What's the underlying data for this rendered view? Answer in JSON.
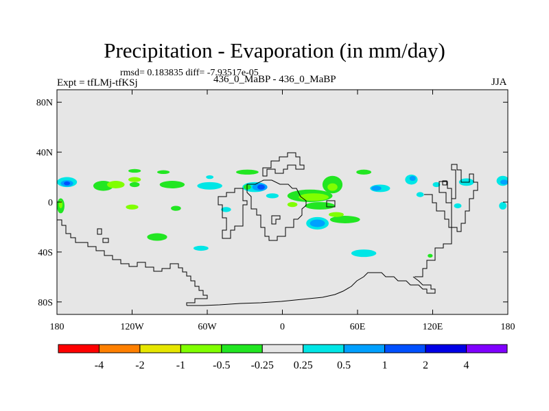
{
  "title": "Precipitation - Evaporation (in mm/day)",
  "stats": "rmsd= 0.183835 diff= -7.93517e-05",
  "expt_label": "Expt = tfLMj-tfKSj",
  "center_label": "436_0_MaBP - 436_0_MaBP",
  "season": "JJA",
  "chart_data": {
    "type": "heatmap",
    "title": "Precipitation - Evaporation (in mm/day)",
    "xlabel": "",
    "ylabel": "",
    "xlim": [
      -180,
      180
    ],
    "ylim": [
      -90,
      90
    ],
    "x_ticks": [
      {
        "value": -180,
        "label": "180"
      },
      {
        "value": -120,
        "label": "120W"
      },
      {
        "value": -60,
        "label": "60W"
      },
      {
        "value": 0,
        "label": "0"
      },
      {
        "value": 60,
        "label": "60E"
      },
      {
        "value": 120,
        "label": "120E"
      },
      {
        "value": 180,
        "label": "180"
      }
    ],
    "y_ticks": [
      {
        "value": 80,
        "label": "80N"
      },
      {
        "value": 40,
        "label": "40N"
      },
      {
        "value": 0,
        "label": "0"
      },
      {
        "value": -40,
        "label": "40S"
      },
      {
        "value": -80,
        "label": "80S"
      }
    ],
    "colorbar": {
      "colors": [
        "#ff0000",
        "#ff8000",
        "#e6e600",
        "#80ff00",
        "#22e622",
        "#e6e6e6",
        "#00e6e6",
        "#00a0ff",
        "#0050ff",
        "#0000e6",
        "#8000ff"
      ],
      "labels": [
        "-4",
        "-2",
        "-1",
        "-0.5",
        "-0.25",
        "0.25",
        "0.5",
        "1",
        "2",
        "4"
      ]
    },
    "background_color": "#e6e6e6",
    "anomaly_regions": [
      {
        "lon": -172,
        "lat": 16,
        "rlon": 8,
        "rlat": 4,
        "color": "#00e6e6"
      },
      {
        "lon": -172,
        "lat": 15,
        "rlon": 5,
        "rlat": 2.5,
        "color": "#00a0ff"
      },
      {
        "lon": -172,
        "lat": 15,
        "rlon": 2.5,
        "rlat": 1.5,
        "color": "#0050ff"
      },
      {
        "lon": -143,
        "lat": 13,
        "rlon": 8,
        "rlat": 4,
        "color": "#22e622"
      },
      {
        "lon": -133,
        "lat": 14,
        "rlon": 7,
        "rlat": 3,
        "color": "#80ff00"
      },
      {
        "lon": -118,
        "lat": 18,
        "rlon": 5,
        "rlat": 2,
        "color": "#80ff00"
      },
      {
        "lon": -118,
        "lat": 14,
        "rlon": 4,
        "rlat": 2,
        "color": "#22e622"
      },
      {
        "lon": -88,
        "lat": 14,
        "rlon": 10,
        "rlat": 3,
        "color": "#22e622"
      },
      {
        "lon": -58,
        "lat": 13,
        "rlon": 10,
        "rlat": 3,
        "color": "#00e6e6"
      },
      {
        "lon": -58,
        "lat": 20,
        "rlon": 3,
        "rlat": 1.5,
        "color": "#00e6e6"
      },
      {
        "lon": -95,
        "lat": 24,
        "rlon": 5,
        "rlat": 1.5,
        "color": "#22e622"
      },
      {
        "lon": -118,
        "lat": 25,
        "rlon": 5,
        "rlat": 1.5,
        "color": "#22e622"
      },
      {
        "lon": -28,
        "lat": 24,
        "rlon": 9,
        "rlat": 2,
        "color": "#22e622"
      },
      {
        "lon": 65,
        "lat": 24,
        "rlon": 6,
        "rlat": 2,
        "color": "#22e622"
      },
      {
        "lon": -120,
        "lat": -4,
        "rlon": 5,
        "rlat": 2,
        "color": "#80ff00"
      },
      {
        "lon": -85,
        "lat": -5,
        "rlon": 4,
        "rlat": 2,
        "color": "#22e622"
      },
      {
        "lon": -177,
        "lat": -3,
        "rlon": 3,
        "rlat": 6,
        "color": "#22e622"
      },
      {
        "lon": -177,
        "lat": -2,
        "rlon": 1.5,
        "rlat": 3,
        "color": "#80ff00"
      },
      {
        "lon": -100,
        "lat": -28,
        "rlon": 8,
        "rlat": 3,
        "color": "#22e622"
      },
      {
        "lon": -65,
        "lat": -37,
        "rlon": 6,
        "rlat": 2,
        "color": "#00e6e6"
      },
      {
        "lon": -22,
        "lat": 12,
        "rlon": 10,
        "rlat": 4,
        "color": "#00e6e6"
      },
      {
        "lon": -18,
        "lat": 12,
        "rlon": 6,
        "rlat": 3,
        "color": "#00a0ff"
      },
      {
        "lon": -17,
        "lat": 12,
        "rlon": 3,
        "rlat": 2,
        "color": "#0050ff"
      },
      {
        "lon": -28,
        "lat": 12,
        "rlon": 3,
        "rlat": 2,
        "color": "#22e622"
      },
      {
        "lon": 22,
        "lat": 5,
        "rlon": 18,
        "rlat": 5,
        "color": "#22e622"
      },
      {
        "lon": 25,
        "lat": 4,
        "rlon": 12,
        "rlat": 3,
        "color": "#80ff00"
      },
      {
        "lon": 40,
        "lat": 14,
        "rlon": 8,
        "rlat": 7,
        "color": "#22e622"
      },
      {
        "lon": 40,
        "lat": 12,
        "rlon": 4,
        "rlat": 3,
        "color": "#80ff00"
      },
      {
        "lon": 30,
        "lat": -3,
        "rlon": 12,
        "rlat": 3,
        "color": "#22e622"
      },
      {
        "lon": 50,
        "lat": -14,
        "rlon": 12,
        "rlat": 3,
        "color": "#22e622"
      },
      {
        "lon": 43,
        "lat": -10,
        "rlon": 6,
        "rlat": 2,
        "color": "#80ff00"
      },
      {
        "lon": -8,
        "lat": 5,
        "rlon": 5,
        "rlat": 2,
        "color": "#00e6e6"
      },
      {
        "lon": 8,
        "lat": -2,
        "rlon": 4,
        "rlat": 2,
        "color": "#80ff00"
      },
      {
        "lon": 28,
        "lat": -17,
        "rlon": 9,
        "rlat": 5,
        "color": "#00e6e6"
      },
      {
        "lon": 28,
        "lat": -17,
        "rlon": 6,
        "rlat": 3,
        "color": "#00a0ff"
      },
      {
        "lon": 78,
        "lat": 11,
        "rlon": 8,
        "rlat": 3,
        "color": "#00e6e6"
      },
      {
        "lon": 75,
        "lat": 11,
        "rlon": 4,
        "rlat": 2,
        "color": "#00a0ff"
      },
      {
        "lon": 103,
        "lat": 18,
        "rlon": 5,
        "rlat": 4,
        "color": "#00e6e6"
      },
      {
        "lon": 104,
        "lat": 19,
        "rlon": 2.5,
        "rlat": 2,
        "color": "#00a0ff"
      },
      {
        "lon": 123,
        "lat": 14,
        "rlon": 3,
        "rlat": 2,
        "color": "#00e6e6"
      },
      {
        "lon": 110,
        "lat": 6,
        "rlon": 3,
        "rlat": 2,
        "color": "#00e6e6"
      },
      {
        "lon": 147,
        "lat": 16,
        "rlon": 6,
        "rlat": 3,
        "color": "#00e6e6"
      },
      {
        "lon": 176,
        "lat": 17,
        "rlon": 5,
        "rlat": 4,
        "color": "#00e6e6"
      },
      {
        "lon": 177,
        "lat": 16,
        "rlon": 3,
        "rlat": 2,
        "color": "#00a0ff"
      },
      {
        "lon": 176,
        "lat": -3,
        "rlon": 3,
        "rlat": 3,
        "color": "#00e6e6"
      },
      {
        "lon": 140,
        "lat": -3,
        "rlon": 3,
        "rlat": 2,
        "color": "#00e6e6"
      },
      {
        "lon": 118,
        "lat": -43,
        "rlon": 2,
        "rlat": 1.5,
        "color": "#22e622"
      },
      {
        "lon": 65,
        "lat": -41,
        "rlon": 10,
        "rlat": 3,
        "color": "#00e6e6"
      },
      {
        "lon": -45,
        "lat": -6,
        "rlon": 4,
        "rlat": 2,
        "color": "#00e6e6"
      }
    ]
  }
}
